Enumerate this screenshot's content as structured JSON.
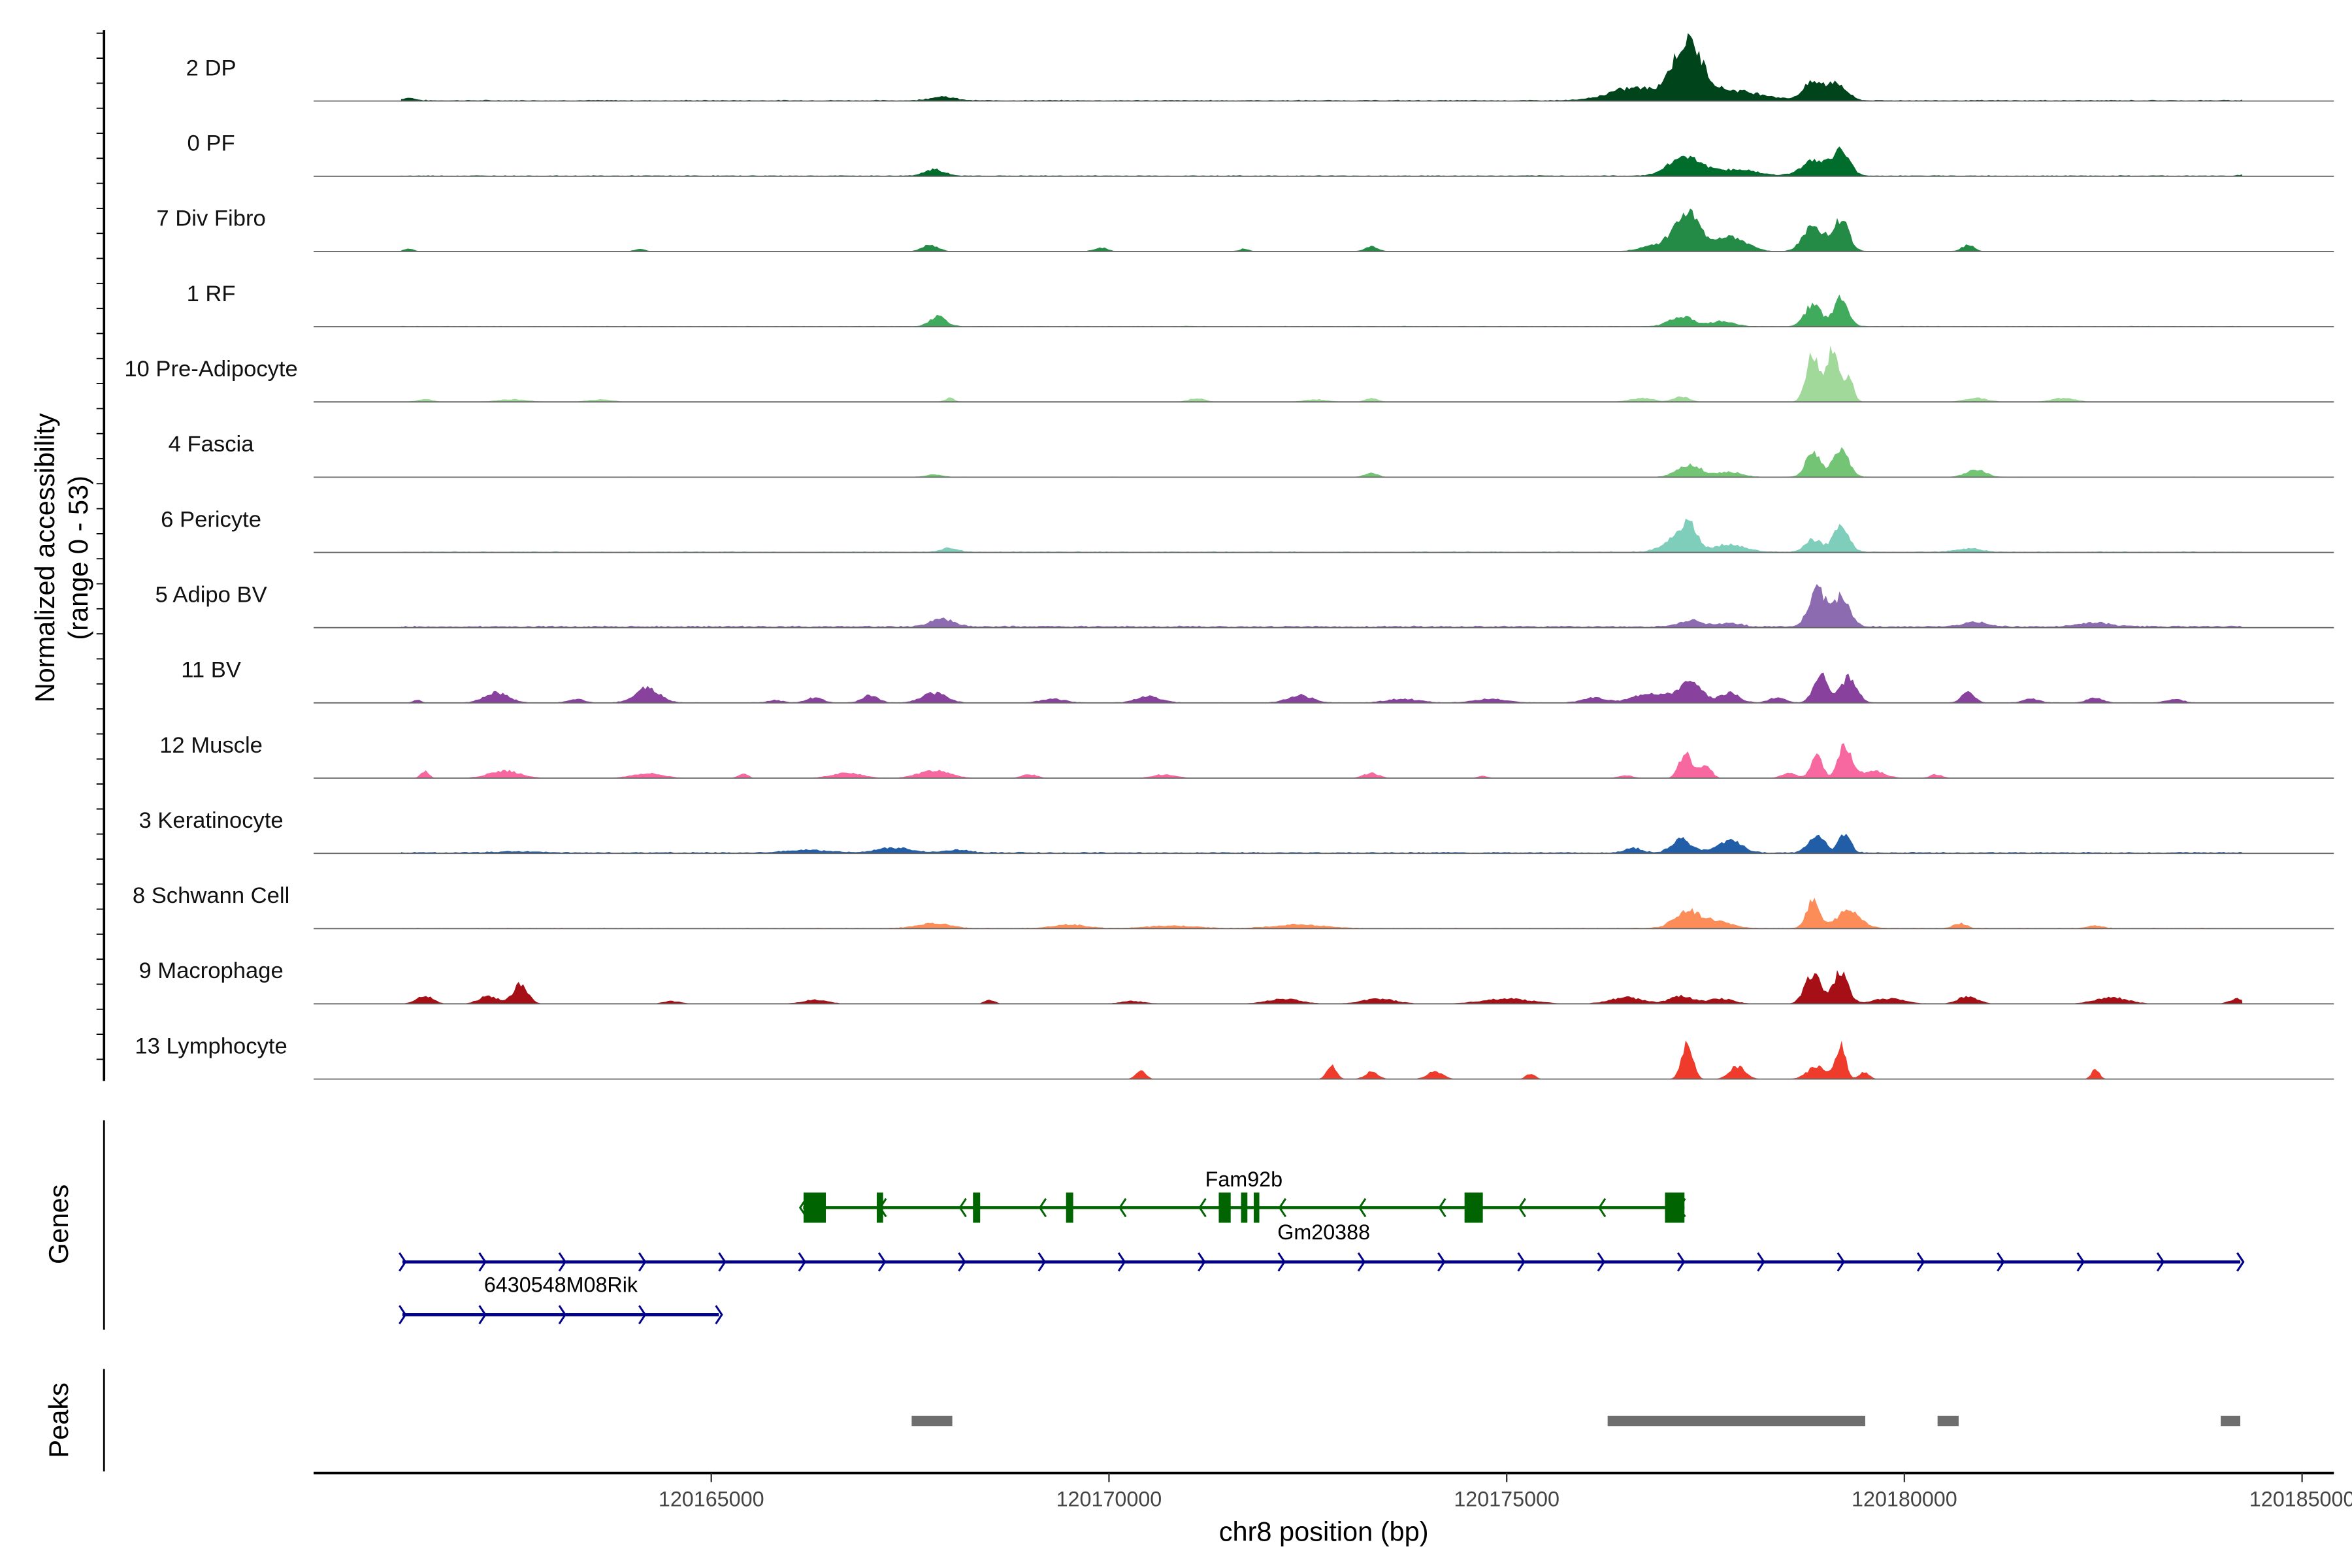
{
  "chart_data": {
    "type": "area",
    "title": "",
    "xlabel": "chr8 position (bp)",
    "ylabel": "Normalized accessibility",
    "ylabel_range": "(range 0 - 53)",
    "ylim": [
      0,
      53
    ],
    "xlim": [
      120160000,
      120185400
    ],
    "x_ticks": [
      120165000,
      120170000,
      120175000,
      120180000,
      120185000
    ],
    "x_tick_labels": [
      "120165000",
      "120170000",
      "120175000",
      "120180000",
      "120185000"
    ],
    "region": [
      120161100,
      120184250
    ],
    "peak_format": "[center_bp, height, width_bp]",
    "tracks": [
      {
        "label": "2 DP",
        "color": "#00441b",
        "base": 0.6,
        "peaks": [
          [
            120161200,
            2,
            80
          ],
          [
            120167900,
            3,
            150
          ],
          [
            120176600,
            10,
            300
          ],
          [
            120177270,
            44,
            180
          ],
          [
            120177800,
            8,
            400
          ],
          [
            120178850,
            14,
            120
          ],
          [
            120179150,
            14,
            120
          ],
          [
            120184400,
            1,
            100
          ]
        ]
      },
      {
        "label": "0 PF",
        "color": "#006d2c",
        "base": 0.5,
        "peaks": [
          [
            120167800,
            5,
            120
          ],
          [
            120177250,
            16,
            200
          ],
          [
            120177900,
            5,
            250
          ],
          [
            120178850,
            12,
            150
          ],
          [
            120179200,
            20,
            110
          ],
          [
            120184400,
            3,
            100
          ]
        ]
      },
      {
        "label": "7 Div Fibro",
        "color": "#238b45",
        "base": 0.2,
        "peaks": [
          [
            120161200,
            2,
            60
          ],
          [
            120164100,
            2,
            60
          ],
          [
            120167750,
            5,
            100
          ],
          [
            120169900,
            3,
            80
          ],
          [
            120171700,
            2,
            60
          ],
          [
            120173300,
            4,
            80
          ],
          [
            120176800,
            4,
            150
          ],
          [
            120177250,
            32,
            160
          ],
          [
            120177800,
            12,
            200
          ],
          [
            120178850,
            22,
            120
          ],
          [
            120179200,
            26,
            100
          ],
          [
            120180800,
            5,
            80
          ],
          [
            120184400,
            4,
            60
          ]
        ]
      },
      {
        "label": "1 RF",
        "color": "#41ab5d",
        "base": 0.4,
        "peaks": [
          [
            120167850,
            8,
            100
          ],
          [
            120177200,
            8,
            150
          ],
          [
            120177700,
            4,
            150
          ],
          [
            120178850,
            18,
            100
          ],
          [
            120179200,
            22,
            90
          ]
        ]
      },
      {
        "label": "10 Pre-Adipocyte",
        "color": "#a1d99b",
        "base": 0.1,
        "peaks": [
          [
            120161400,
            2,
            100
          ],
          [
            120162500,
            2,
            200
          ],
          [
            120163600,
            2,
            150
          ],
          [
            120168000,
            3,
            60
          ],
          [
            120171100,
            3,
            100
          ],
          [
            120172600,
            2,
            150
          ],
          [
            120173300,
            3,
            80
          ],
          [
            120176700,
            3,
            150
          ],
          [
            120177200,
            4,
            100
          ],
          [
            120178850,
            40,
            80
          ],
          [
            120179100,
            46,
            70
          ],
          [
            120179300,
            20,
            60
          ],
          [
            120180900,
            3,
            150
          ],
          [
            120182000,
            3,
            150
          ]
        ]
      },
      {
        "label": "4 Fascia",
        "color": "#74c476",
        "base": 0.3,
        "peaks": [
          [
            120167800,
            2,
            100
          ],
          [
            120173300,
            3,
            80
          ],
          [
            120177300,
            10,
            150
          ],
          [
            120177800,
            4,
            150
          ],
          [
            120178850,
            20,
            90
          ],
          [
            120179200,
            22,
            100
          ],
          [
            120180900,
            6,
            120
          ]
        ]
      },
      {
        "label": "6 Pericyte",
        "color": "#7fcdbb",
        "base": 0.5,
        "peaks": [
          [
            120168000,
            3,
            100
          ],
          [
            120177100,
            10,
            150
          ],
          [
            120177300,
            20,
            100
          ],
          [
            120177800,
            6,
            200
          ],
          [
            120178850,
            10,
            100
          ],
          [
            120179200,
            20,
            100
          ],
          [
            120180800,
            3,
            150
          ]
        ]
      },
      {
        "label": "5 Adipo BV",
        "color": "#8c6bb1",
        "base": 1.0,
        "peaks": [
          [
            120167900,
            6,
            150
          ],
          [
            120177300,
            5,
            150
          ],
          [
            120177800,
            3,
            150
          ],
          [
            120178900,
            30,
            100
          ],
          [
            120179200,
            24,
            110
          ],
          [
            120180900,
            4,
            150
          ],
          [
            120182400,
            3,
            200
          ]
        ]
      },
      {
        "label": "11 BV",
        "color": "#88419d",
        "base": 0.3,
        "peaks": [
          [
            120161300,
            2,
            50
          ],
          [
            120162300,
            8,
            150
          ],
          [
            120163300,
            3,
            100
          ],
          [
            120164200,
            12,
            150
          ],
          [
            120165800,
            2,
            100
          ],
          [
            120166300,
            4,
            100
          ],
          [
            120167000,
            6,
            100
          ],
          [
            120167800,
            8,
            150
          ],
          [
            120169300,
            3,
            150
          ],
          [
            120170500,
            5,
            150
          ],
          [
            120172400,
            6,
            150
          ],
          [
            120173700,
            3,
            200
          ],
          [
            120174800,
            3,
            200
          ],
          [
            120176100,
            4,
            150
          ],
          [
            120176800,
            8,
            200
          ],
          [
            120177300,
            16,
            150
          ],
          [
            120177800,
            8,
            120
          ],
          [
            120178400,
            4,
            100
          ],
          [
            120178950,
            24,
            90
          ],
          [
            120179300,
            20,
            100
          ],
          [
            120180800,
            8,
            80
          ],
          [
            120181600,
            3,
            100
          ],
          [
            120182400,
            4,
            100
          ],
          [
            120183400,
            3,
            100
          ]
        ]
      },
      {
        "label": "12 Muscle",
        "color": "#f768a1",
        "base": 0.0,
        "peaks": [
          [
            120161400,
            6,
            50
          ],
          [
            120162400,
            6,
            200
          ],
          [
            120164200,
            4,
            200
          ],
          [
            120165400,
            4,
            60
          ],
          [
            120166700,
            4,
            200
          ],
          [
            120167800,
            6,
            200
          ],
          [
            120169000,
            3,
            100
          ],
          [
            120170700,
            3,
            150
          ],
          [
            120173300,
            4,
            100
          ],
          [
            120174700,
            2,
            60
          ],
          [
            120176500,
            2,
            100
          ],
          [
            120177250,
            20,
            80
          ],
          [
            120177500,
            12,
            70
          ],
          [
            120178550,
            4,
            100
          ],
          [
            120178900,
            18,
            70
          ],
          [
            120179250,
            26,
            80
          ],
          [
            120179600,
            6,
            150
          ],
          [
            120180400,
            3,
            80
          ],
          [
            120184400,
            4,
            40
          ]
        ]
      },
      {
        "label": "3 Keratinocyte",
        "color": "#225ea8",
        "base": 0.7,
        "peaks": [
          [
            120162600,
            1,
            300
          ],
          [
            120166200,
            2,
            300
          ],
          [
            120167300,
            4,
            200
          ],
          [
            120168100,
            2,
            150
          ],
          [
            120176600,
            4,
            100
          ],
          [
            120177200,
            11,
            120
          ],
          [
            120177800,
            10,
            150
          ],
          [
            120178900,
            14,
            100
          ],
          [
            120179250,
            16,
            70
          ]
        ]
      },
      {
        "label": "8 Schwann Cell",
        "color": "#fc8d59",
        "base": 0.4,
        "peaks": [
          [
            120167800,
            4,
            200
          ],
          [
            120169500,
            3,
            200
          ],
          [
            120170800,
            2,
            300
          ],
          [
            120172400,
            3,
            300
          ],
          [
            120177250,
            13,
            150
          ],
          [
            120177600,
            6,
            200
          ],
          [
            120178850,
            22,
            80
          ],
          [
            120179300,
            14,
            150
          ],
          [
            120180700,
            4,
            80
          ],
          [
            120182400,
            2,
            100
          ]
        ]
      },
      {
        "label": "9 Macrophage",
        "color": "#a50f15",
        "base": 0.2,
        "peaks": [
          [
            120161400,
            6,
            100
          ],
          [
            120162200,
            6,
            120
          ],
          [
            120162600,
            16,
            90
          ],
          [
            120164500,
            2,
            100
          ],
          [
            120166300,
            3,
            150
          ],
          [
            120168500,
            3,
            60
          ],
          [
            120170300,
            2,
            150
          ],
          [
            120172200,
            4,
            200
          ],
          [
            120173400,
            4,
            200
          ],
          [
            120175000,
            4,
            300
          ],
          [
            120176500,
            5,
            200
          ],
          [
            120177200,
            6,
            150
          ],
          [
            120177700,
            4,
            150
          ],
          [
            120178850,
            24,
            100
          ],
          [
            120179200,
            26,
            90
          ],
          [
            120179800,
            4,
            200
          ],
          [
            120180800,
            6,
            120
          ],
          [
            120182600,
            5,
            200
          ],
          [
            120184200,
            4,
            100
          ]
        ]
      },
      {
        "label": "13 Lymphocyte",
        "color": "#ef3b2c",
        "base": 0.0,
        "peaks": [
          [
            120170400,
            8,
            60
          ],
          [
            120172800,
            12,
            60
          ],
          [
            120173300,
            6,
            80
          ],
          [
            120174100,
            6,
            100
          ],
          [
            120175300,
            4,
            60
          ],
          [
            120177270,
            28,
            70
          ],
          [
            120177900,
            10,
            100
          ],
          [
            120178900,
            10,
            120
          ],
          [
            120179200,
            28,
            60
          ],
          [
            120179500,
            6,
            60
          ],
          [
            120182400,
            8,
            50
          ]
        ]
      }
    ],
    "genes_panel_label": "Genes",
    "genes": [
      {
        "name": "Fam92b",
        "color": "#006400",
        "strand": "-",
        "start": 120166155,
        "end": 120177235,
        "exons": [
          [
            120166160,
            120166440
          ],
          [
            120167080,
            120167160
          ],
          [
            120168290,
            120168380
          ],
          [
            120169460,
            120169550
          ],
          [
            120171380,
            120171530
          ],
          [
            120171660,
            120171740
          ],
          [
            120171820,
            120171890
          ],
          [
            120174470,
            120174700
          ],
          [
            120176990,
            120177235
          ]
        ]
      },
      {
        "name": "Gm20388",
        "color": "#00008b",
        "strand": "+",
        "start": 120161117,
        "end": 120184223,
        "exons": []
      },
      {
        "name": "6430548M08Rik",
        "color": "#00008b",
        "strand": "+",
        "start": 120161117,
        "end": 120165095,
        "exons": []
      }
    ],
    "peaks_panel_label": "Peaks",
    "peaks_color": "#6e6e6e",
    "peak_regions": [
      [
        120167519,
        120168030
      ],
      [
        120176269,
        120179508
      ],
      [
        120180417,
        120180682
      ],
      [
        120183977,
        120184223
      ]
    ]
  }
}
